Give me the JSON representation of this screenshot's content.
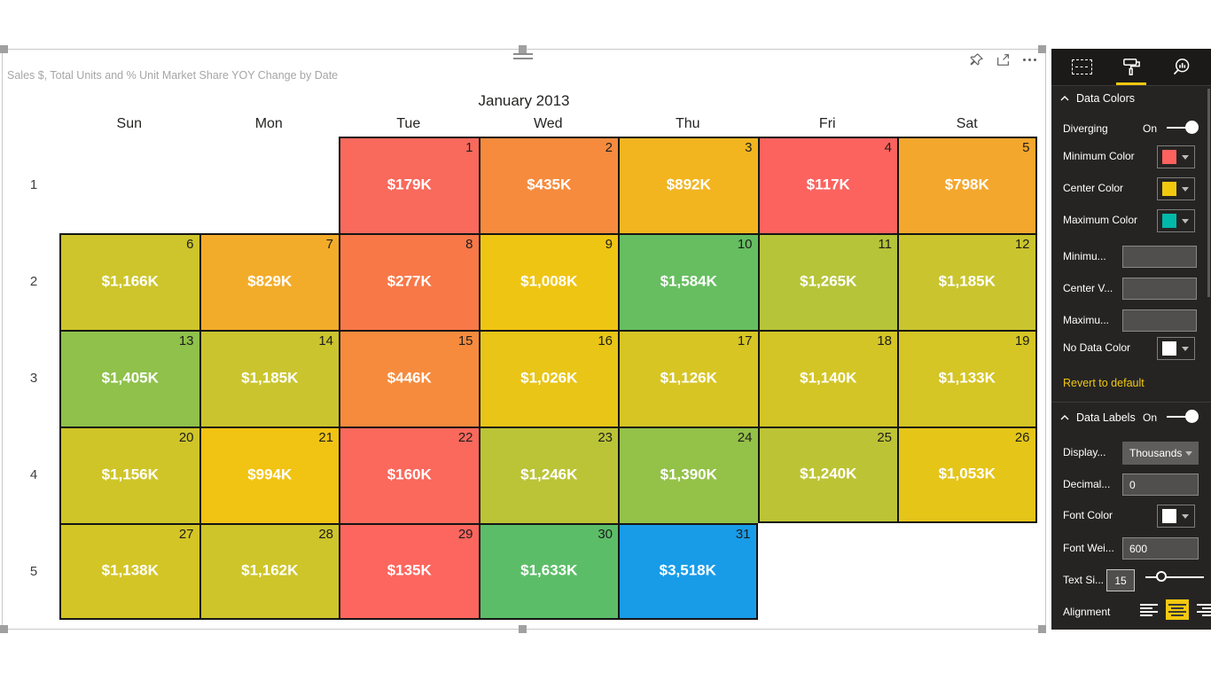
{
  "visual": {
    "title": "Sales $, Total Units and % Unit Market Share YOY Change by Date",
    "month_title": "January 2013",
    "weekday_headers": [
      "Sun",
      "Mon",
      "Tue",
      "Wed",
      "Thu",
      "Fri",
      "Sat"
    ],
    "week_numbers": [
      "1",
      "2",
      "3",
      "4",
      "5"
    ],
    "toolbar_icons": [
      "pin-icon",
      "focus-mode-icon",
      "more-options-icon"
    ]
  },
  "chart_data": {
    "type": "heatmap",
    "title": "Sales $, Total Units and % Unit Market Share YOY Change by Date",
    "subtitle": "January 2013",
    "columns": [
      "Sun",
      "Mon",
      "Tue",
      "Wed",
      "Thu",
      "Fri",
      "Sat"
    ],
    "rows": [
      "1",
      "2",
      "3",
      "4",
      "5"
    ],
    "units": "Sales $ thousands (K)",
    "color_scale": {
      "minimum": "#FD625E",
      "center": "#F2C80F",
      "maximum": "#01B8AA",
      "highlight": "#189CE8"
    },
    "cells": [
      {
        "day": 1,
        "row": 0,
        "col": 2,
        "value_k": 179,
        "label": "$179K",
        "color": "#F9695C"
      },
      {
        "day": 2,
        "row": 0,
        "col": 3,
        "value_k": 435,
        "label": "$435K",
        "color": "#F68B3D"
      },
      {
        "day": 3,
        "row": 0,
        "col": 4,
        "value_k": 892,
        "label": "$892K",
        "color": "#F2B520"
      },
      {
        "day": 4,
        "row": 0,
        "col": 5,
        "value_k": 117,
        "label": "$117K",
        "color": "#FC635F"
      },
      {
        "day": 5,
        "row": 0,
        "col": 6,
        "value_k": 798,
        "label": "$798K",
        "color": "#F4A72D"
      },
      {
        "day": 6,
        "row": 1,
        "col": 0,
        "value_k": 1166,
        "label": "$1,166K",
        "color": "#CDC52B"
      },
      {
        "day": 7,
        "row": 1,
        "col": 1,
        "value_k": 829,
        "label": "$829K",
        "color": "#F3AC29"
      },
      {
        "day": 8,
        "row": 1,
        "col": 2,
        "value_k": 277,
        "label": "$277K",
        "color": "#F87848"
      },
      {
        "day": 9,
        "row": 1,
        "col": 3,
        "value_k": 1008,
        "label": "$1,008K",
        "color": "#EFC513"
      },
      {
        "day": 10,
        "row": 1,
        "col": 4,
        "value_k": 1584,
        "label": "$1,584K",
        "color": "#66BE60"
      },
      {
        "day": 11,
        "row": 1,
        "col": 5,
        "value_k": 1265,
        "label": "$1,265K",
        "color": "#B6C439"
      },
      {
        "day": 12,
        "row": 1,
        "col": 6,
        "value_k": 1185,
        "label": "$1,185K",
        "color": "#CAC52E"
      },
      {
        "day": 13,
        "row": 2,
        "col": 0,
        "value_k": 1405,
        "label": "$1,405K",
        "color": "#8FC14B"
      },
      {
        "day": 14,
        "row": 2,
        "col": 1,
        "value_k": 1185,
        "label": "$1,185K",
        "color": "#CAC52E"
      },
      {
        "day": 15,
        "row": 2,
        "col": 2,
        "value_k": 446,
        "label": "$446K",
        "color": "#F68B3D"
      },
      {
        "day": 16,
        "row": 2,
        "col": 3,
        "value_k": 1026,
        "label": "$1,026K",
        "color": "#E8C516"
      },
      {
        "day": 17,
        "row": 2,
        "col": 4,
        "value_k": 1126,
        "label": "$1,126K",
        "color": "#D7C524"
      },
      {
        "day": 18,
        "row": 2,
        "col": 5,
        "value_k": 1140,
        "label": "$1,140K",
        "color": "#D3C526"
      },
      {
        "day": 19,
        "row": 2,
        "col": 6,
        "value_k": 1133,
        "label": "$1,133K",
        "color": "#D5C525"
      },
      {
        "day": 20,
        "row": 3,
        "col": 0,
        "value_k": 1156,
        "label": "$1,156K",
        "color": "#CFC529"
      },
      {
        "day": 21,
        "row": 3,
        "col": 1,
        "value_k": 994,
        "label": "$994K",
        "color": "#F1C312"
      },
      {
        "day": 22,
        "row": 3,
        "col": 2,
        "value_k": 160,
        "label": "$160K",
        "color": "#FB685C"
      },
      {
        "day": 23,
        "row": 3,
        "col": 3,
        "value_k": 1246,
        "label": "$1,246K",
        "color": "#BBC436"
      },
      {
        "day": 24,
        "row": 3,
        "col": 4,
        "value_k": 1390,
        "label": "$1,390K",
        "color": "#94C148"
      },
      {
        "day": 25,
        "row": 3,
        "col": 5,
        "value_k": 1240,
        "label": "$1,240K",
        "color": "#BCC435"
      },
      {
        "day": 26,
        "row": 3,
        "col": 6,
        "value_k": 1053,
        "label": "$1,053K",
        "color": "#E5C518"
      },
      {
        "day": 27,
        "row": 4,
        "col": 0,
        "value_k": 1138,
        "label": "$1,138K",
        "color": "#D4C526"
      },
      {
        "day": 28,
        "row": 4,
        "col": 1,
        "value_k": 1162,
        "label": "$1,162K",
        "color": "#CEC52A"
      },
      {
        "day": 29,
        "row": 4,
        "col": 2,
        "value_k": 135,
        "label": "$135K",
        "color": "#FC665E"
      },
      {
        "day": 30,
        "row": 4,
        "col": 3,
        "value_k": 1633,
        "label": "$1,633K",
        "color": "#5CBD68"
      },
      {
        "day": 31,
        "row": 4,
        "col": 4,
        "value_k": 3518,
        "label": "$3,518K",
        "color": "#189CE8"
      }
    ]
  },
  "format_pane": {
    "accent": "#F2C80F",
    "tabs": [
      {
        "name": "fields",
        "selected": false
      },
      {
        "name": "format",
        "selected": true
      },
      {
        "name": "analytics",
        "selected": false
      }
    ],
    "data_colors": {
      "header": "Data Colors",
      "diverging_label": "Diverging",
      "diverging_state": "On",
      "color_rows": [
        {
          "label": "Minimum Color",
          "swatch": "#FD625E"
        },
        {
          "label": "Center Color",
          "swatch": "#F2C80F"
        },
        {
          "label": "Maximum Color",
          "swatch": "#01B8AA"
        }
      ],
      "value_inputs": [
        {
          "label": "Minimu...",
          "value": ""
        },
        {
          "label": "Center V...",
          "value": ""
        },
        {
          "label": "Maximu...",
          "value": ""
        }
      ],
      "no_data_label": "No Data Color",
      "no_data_swatch": "#FFFFFF",
      "revert_label": "Revert to default"
    },
    "data_labels": {
      "header": "Data Labels",
      "state": "On",
      "display_label": "Display...",
      "display_value": "Thousands",
      "decimal_label": "Decimal...",
      "decimal_value": "0",
      "font_color_label": "Font Color",
      "font_color_swatch": "#FFFFFF",
      "font_weight_label": "Font Wei...",
      "font_weight_value": "600",
      "text_size_label": "Text Si...",
      "text_size_value": "15",
      "alignment_label": "Alignment",
      "alignment_selected": "center"
    }
  }
}
